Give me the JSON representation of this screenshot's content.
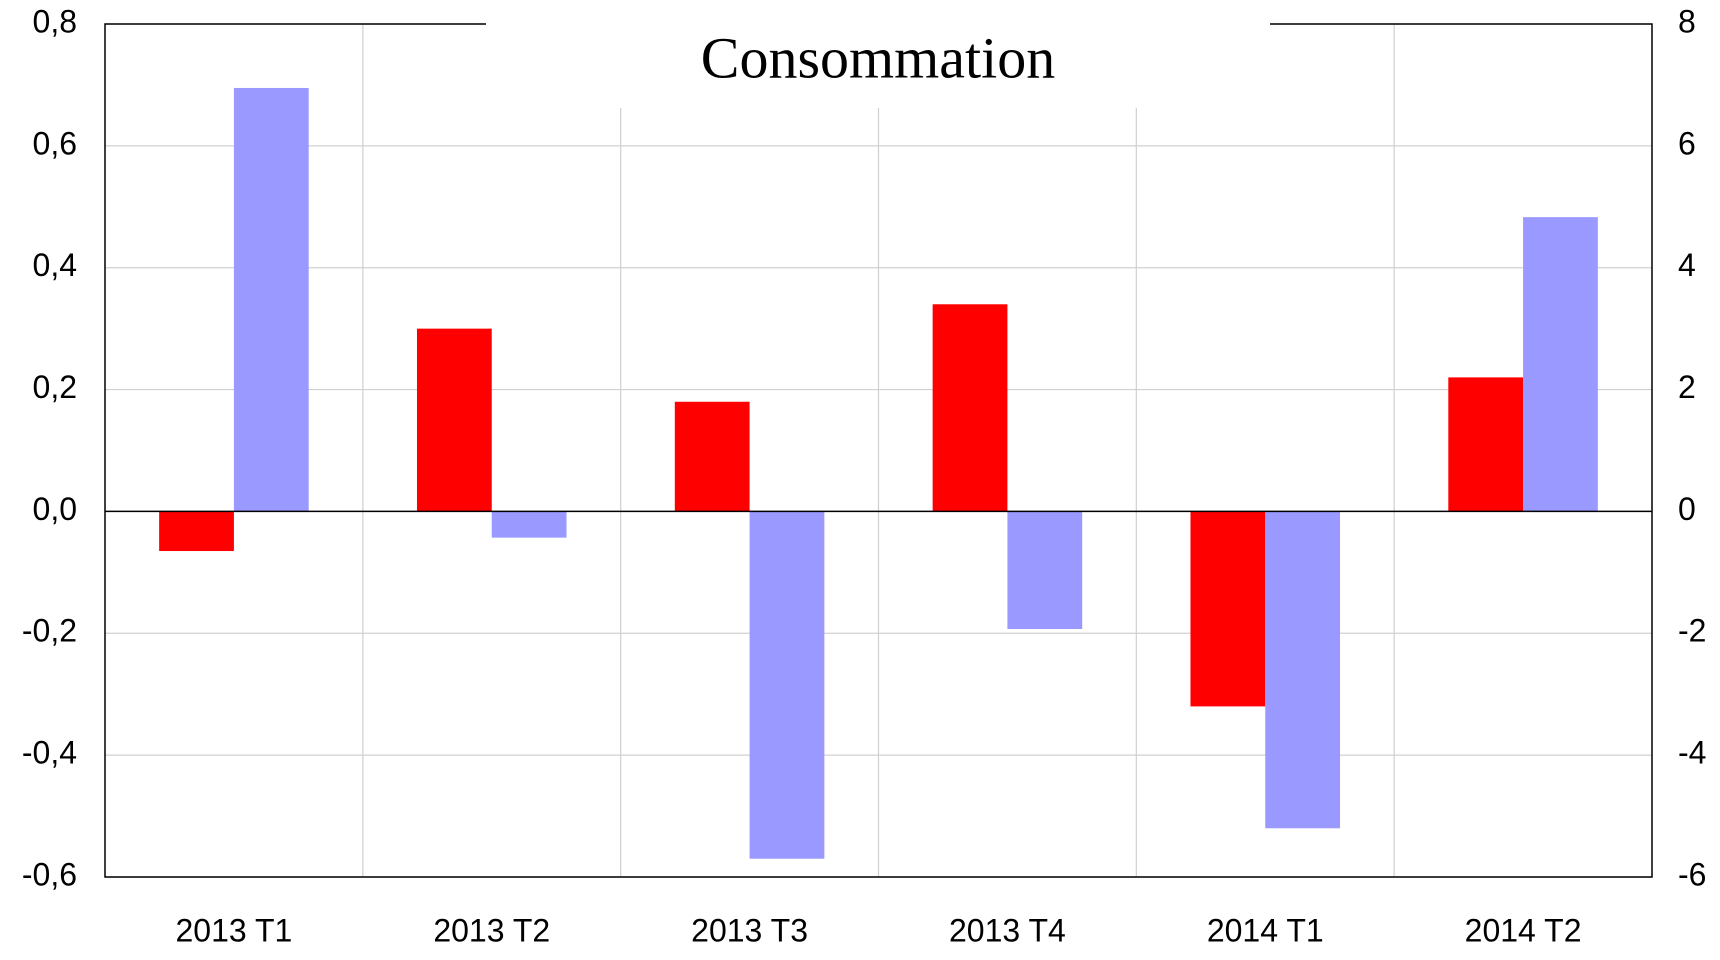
{
  "chart_data": {
    "type": "bar",
    "title": "Consommation",
    "categories": [
      "2013 T1",
      "2013 T2",
      "2013 T3",
      "2013 T4",
      "2014 T1",
      "2014 T2"
    ],
    "series": [
      {
        "color": "#ff0000",
        "values": [
          -0.065,
          0.3,
          0.18,
          0.34,
          -0.32,
          0.22
        ]
      },
      {
        "color": "#9999ff",
        "axis": "y2",
        "values": [
          6.95,
          -0.43,
          -5.7,
          -1.93,
          -5.2,
          4.83
        ]
      }
    ],
    "ylim": [
      -0.6,
      0.8
    ],
    "yticks": [
      {
        "value": -0.6,
        "label": "-0,6"
      },
      {
        "value": -0.4,
        "label": "-0,4"
      },
      {
        "value": -0.2,
        "label": "-0,2"
      },
      {
        "value": 0,
        "label": "0,0"
      },
      {
        "value": 0.2,
        "label": "0,2"
      },
      {
        "value": 0.4,
        "label": "0,4"
      },
      {
        "value": 0.6,
        "label": "0,6"
      },
      {
        "value": 0.8,
        "label": "0,8"
      }
    ],
    "y2lim": [
      -6,
      8
    ],
    "y2ticks": [
      -6,
      -4,
      -2,
      0,
      2,
      4,
      6,
      8
    ],
    "grid": true
  }
}
